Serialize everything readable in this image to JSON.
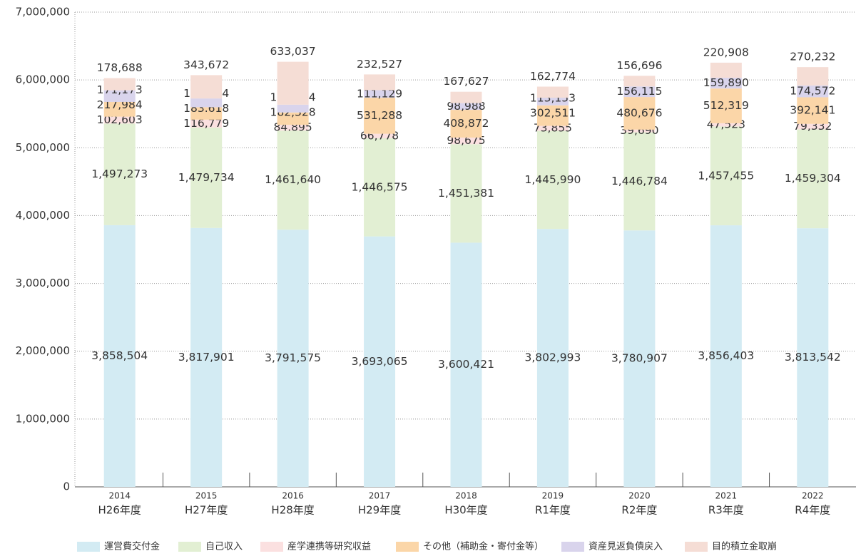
{
  "chart_data": {
    "type": "stacked_bar",
    "categories": [
      "2014",
      "2015",
      "2016",
      "2017",
      "2018",
      "2019",
      "2020",
      "2021",
      "2022"
    ],
    "category_sublabels": [
      "H26年度",
      "H27年度",
      "H28年度",
      "H29年度",
      "H30年度",
      "R1年度",
      "R2年度",
      "R3年度",
      "R4年度"
    ],
    "series": [
      {
        "name": "運営費交付金",
        "color": "#d3ebf3",
        "values": [
          3858504,
          3817901,
          3791575,
          3693065,
          3600421,
          3802993,
          3780907,
          3856403,
          3813542
        ],
        "value_labels": [
          "3,858,504",
          "3,817,901",
          "3,791,575",
          "3,693,065",
          "3,600,421",
          "3,802,993",
          "3,780,907",
          "3,856,403",
          "3,813,542"
        ]
      },
      {
        "name": "自己収入",
        "color": "#e2efd3",
        "values": [
          1497273,
          1479734,
          1461640,
          1446575,
          1451381,
          1445990,
          1446784,
          1457455,
          1459304
        ],
        "value_labels": [
          "1,497,273",
          "1,479,734",
          "1,461,640",
          "1,446,575",
          "1,451,381",
          "1,445,990",
          "1,446,784",
          "1,457,455",
          "1,459,304"
        ]
      },
      {
        "name": "産学連携等研究収益",
        "color": "#fbe0e0",
        "values": [
          102603,
          116779,
          84895,
          66778,
          98675,
          73855,
          39690,
          47523,
          79332
        ],
        "value_labels": [
          "102,603",
          "116,779",
          "84.895",
          "66,778",
          "98,675",
          "73,855",
          "39,690",
          "47,523",
          "79,332"
        ]
      },
      {
        "name": "その他（補助金・寄付金等）",
        "color": "#fbd6a8",
        "values": [
          217984,
          183618,
          182328,
          531288,
          408872,
          302511,
          480676,
          512319,
          392141
        ],
        "value_labels": [
          "217,984",
          "183.618",
          "182,328",
          "531,288",
          "408,872",
          "302,511",
          "480,676",
          "512,319",
          "392,141"
        ]
      },
      {
        "name": "資産見返負債戻入",
        "color": "#d9d4ec",
        "values": [
          171173,
          128994,
          114594,
          111129,
          98988,
          113153,
          156115,
          159890,
          174572
        ],
        "value_labels": [
          "171,173",
          "128,994",
          "114,594",
          "111,129",
          "98,988",
          "113,153",
          "156,115",
          "159,890",
          "174,572"
        ]
      },
      {
        "name": "目的積立金取崩",
        "color": "#f5ddd5",
        "values": [
          178688,
          343672,
          633037,
          232527,
          167627,
          162774,
          156696,
          220908,
          270232
        ],
        "value_labels": [
          "178,688",
          "343,672",
          "633,037",
          "232,527",
          "167,627",
          "162,774",
          "156,696",
          "220,908",
          "270,232"
        ]
      }
    ],
    "ylim": [
      0,
      7000000
    ],
    "yticks": [
      0,
      {
        "value": 1000000,
        "label": "1,000,000"
      },
      {
        "value": 2000000,
        "label": "2,000,000"
      },
      {
        "value": 3000000,
        "label": "3,000,000"
      },
      {
        "value": 4000000,
        "label": "4,000,000"
      },
      {
        "value": 5000000,
        "label": "5,000,000"
      },
      {
        "value": 6000000,
        "label": "6,000,000"
      },
      {
        "value": 7000000,
        "label": "7,000,000"
      }
    ],
    "grid": true,
    "legend": "bottom"
  }
}
